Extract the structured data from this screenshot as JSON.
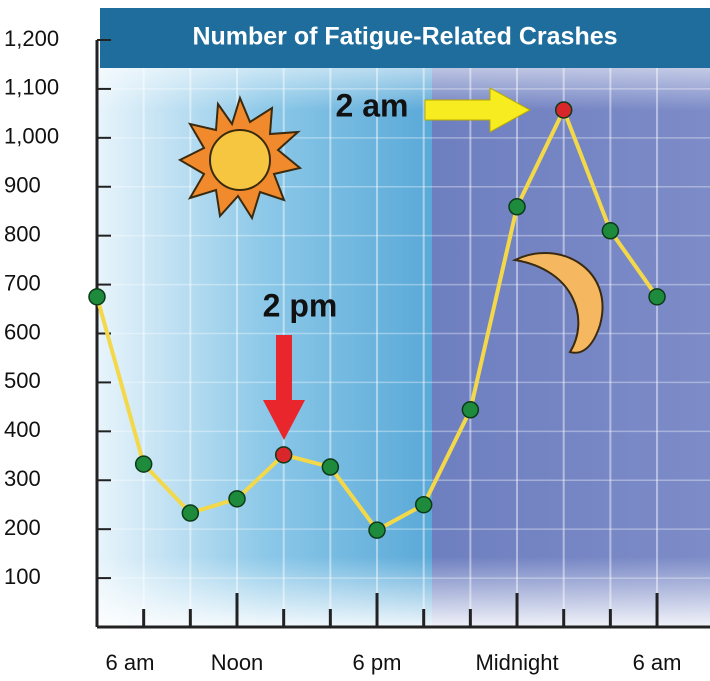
{
  "chart_data": {
    "type": "line",
    "title": "Number of Fatigue-Related Crashes",
    "categories": [
      "6 am",
      null,
      null,
      "Noon",
      null,
      null,
      "6 pm",
      null,
      null,
      "Midnight",
      null,
      null,
      "6 am"
    ],
    "series": [
      {
        "color": "#f3d84a",
        "values": [
          675,
          333,
          233,
          262,
          352,
          327,
          198,
          250,
          444,
          859,
          1057,
          810,
          675
        ],
        "point_colors": [
          "#1d8a3c",
          "#1d8a3c",
          "#1d8a3c",
          "#1d8a3c",
          "#d9262b",
          "#1d8a3c",
          "#1d8a3c",
          "#1d8a3c",
          "#1d8a3c",
          "#1d8a3c",
          "#d9262b",
          "#1d8a3c",
          "#1d8a3c"
        ]
      }
    ],
    "ylim": [
      0,
      1200
    ],
    "yticks": [
      {
        "value": 100,
        "label": "100"
      },
      {
        "value": 200,
        "label": "200"
      },
      {
        "value": 300,
        "label": "300"
      },
      {
        "value": 400,
        "label": "400"
      },
      {
        "value": 500,
        "label": "500"
      },
      {
        "value": 600,
        "label": "600"
      },
      {
        "value": 700,
        "label": "700"
      },
      {
        "value": 800,
        "label": "800"
      },
      {
        "value": 900,
        "label": "900"
      },
      {
        "value": 1000,
        "label": "1,000"
      },
      {
        "value": 1100,
        "label": "1,100"
      },
      {
        "value": 1200,
        "label": "1,200"
      }
    ],
    "grid": true,
    "annotations": [
      "2 am",
      "2 pm"
    ]
  }
}
